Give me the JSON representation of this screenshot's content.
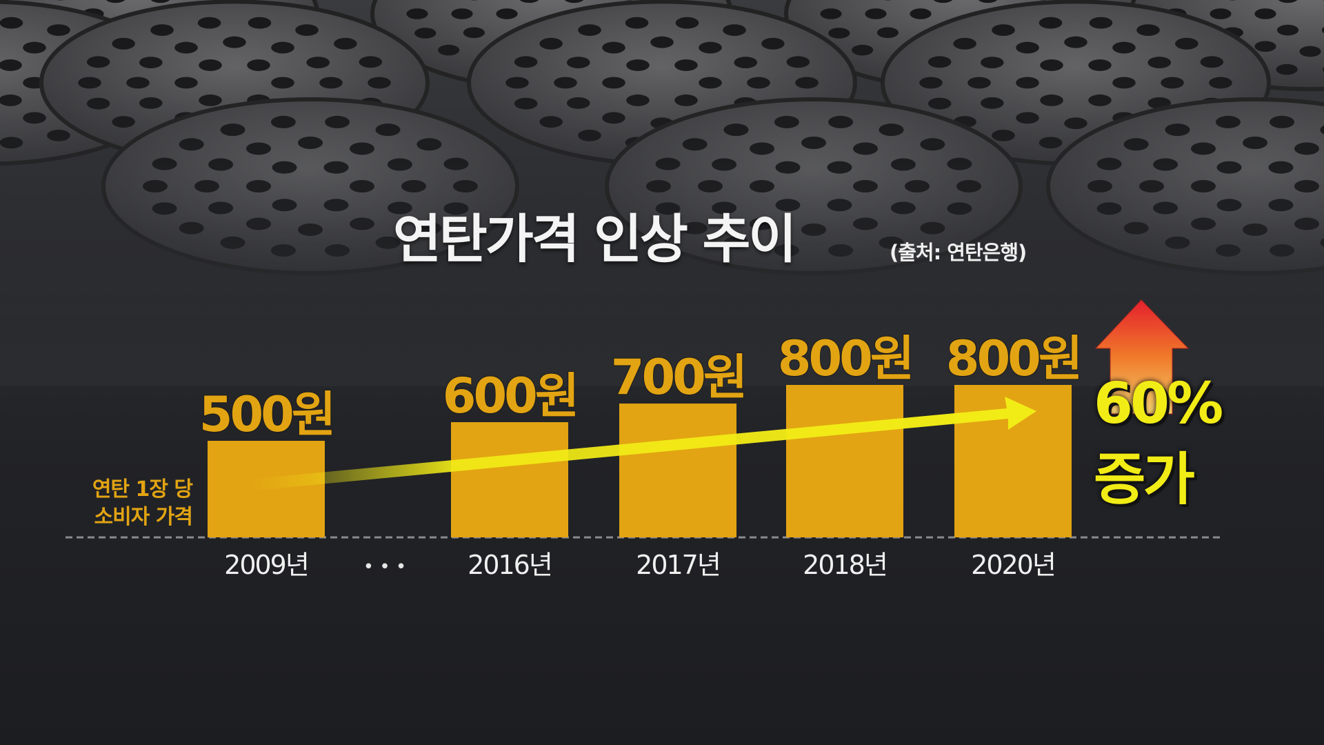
{
  "title": "연탄가격 인상 추이",
  "source": "(출처: 연탄은행)",
  "chart_data": {
    "type": "bar",
    "categories": [
      "2009년",
      "2016년",
      "2017년",
      "2018년",
      "2020년"
    ],
    "values": [
      500,
      600,
      700,
      800,
      800
    ],
    "value_labels": [
      "500원",
      "600원",
      "700원",
      "800원",
      "800원"
    ],
    "gap_marker": "• • •",
    "ylabel": [
      "연탄 1장 당",
      "소비자 가격"
    ],
    "unit": "원",
    "annotation": {
      "line1": "60%",
      "line2": "증가"
    },
    "grid": false,
    "colors": {
      "bar": "#e2a413",
      "trend_arrow": "#f2ec16",
      "up_arrow": "#e8322a",
      "annotation": "#f2ec16"
    }
  }
}
